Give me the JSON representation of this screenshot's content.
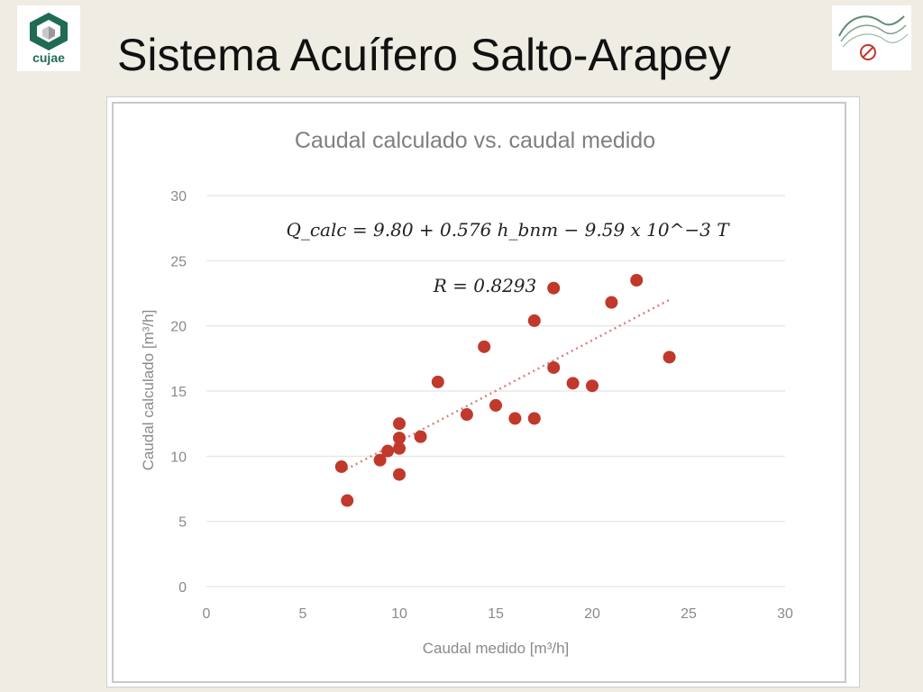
{
  "slide": {
    "title": "Sistema Acuífero Salto-Arapey",
    "left_logo_text": "cujae"
  },
  "chart_data": {
    "type": "scatter",
    "title": "Caudal calculado vs. caudal medido",
    "xlabel": "Caudal medido [m³/h]",
    "ylabel": "Caudal calculado [m³/h]",
    "xlim": [
      0,
      30
    ],
    "ylim": [
      0,
      30
    ],
    "xticks": [
      0,
      5,
      10,
      15,
      20,
      25,
      30
    ],
    "yticks": [
      0,
      5,
      10,
      15,
      20,
      25,
      30
    ],
    "grid": "horizontal",
    "marker_color": "#c0392b",
    "trendline_color": "#d98080",
    "annotations": {
      "equation": "Q_calc = 9.80 + 0.576 h_bnm − 9.59 x 10^−3 T",
      "r_value": "R = 0.8293"
    },
    "trendline": {
      "x": [
        7,
        24
      ],
      "y": [
        8.8,
        22
      ]
    },
    "points": [
      {
        "x": 7.0,
        "y": 9.2
      },
      {
        "x": 7.3,
        "y": 6.6
      },
      {
        "x": 9.0,
        "y": 9.7
      },
      {
        "x": 9.4,
        "y": 10.4
      },
      {
        "x": 10.0,
        "y": 12.5
      },
      {
        "x": 10.0,
        "y": 11.4
      },
      {
        "x": 10.0,
        "y": 10.6
      },
      {
        "x": 10.0,
        "y": 8.6
      },
      {
        "x": 11.1,
        "y": 11.5
      },
      {
        "x": 12.0,
        "y": 15.7
      },
      {
        "x": 13.5,
        "y": 13.2
      },
      {
        "x": 14.4,
        "y": 18.4
      },
      {
        "x": 15.0,
        "y": 13.9
      },
      {
        "x": 16.0,
        "y": 12.9
      },
      {
        "x": 17.0,
        "y": 20.4
      },
      {
        "x": 17.0,
        "y": 12.9
      },
      {
        "x": 18.0,
        "y": 22.9
      },
      {
        "x": 18.0,
        "y": 16.8
      },
      {
        "x": 19.0,
        "y": 15.6
      },
      {
        "x": 20.0,
        "y": 15.4
      },
      {
        "x": 21.0,
        "y": 21.8
      },
      {
        "x": 22.3,
        "y": 23.5
      },
      {
        "x": 24.0,
        "y": 17.6
      }
    ]
  }
}
